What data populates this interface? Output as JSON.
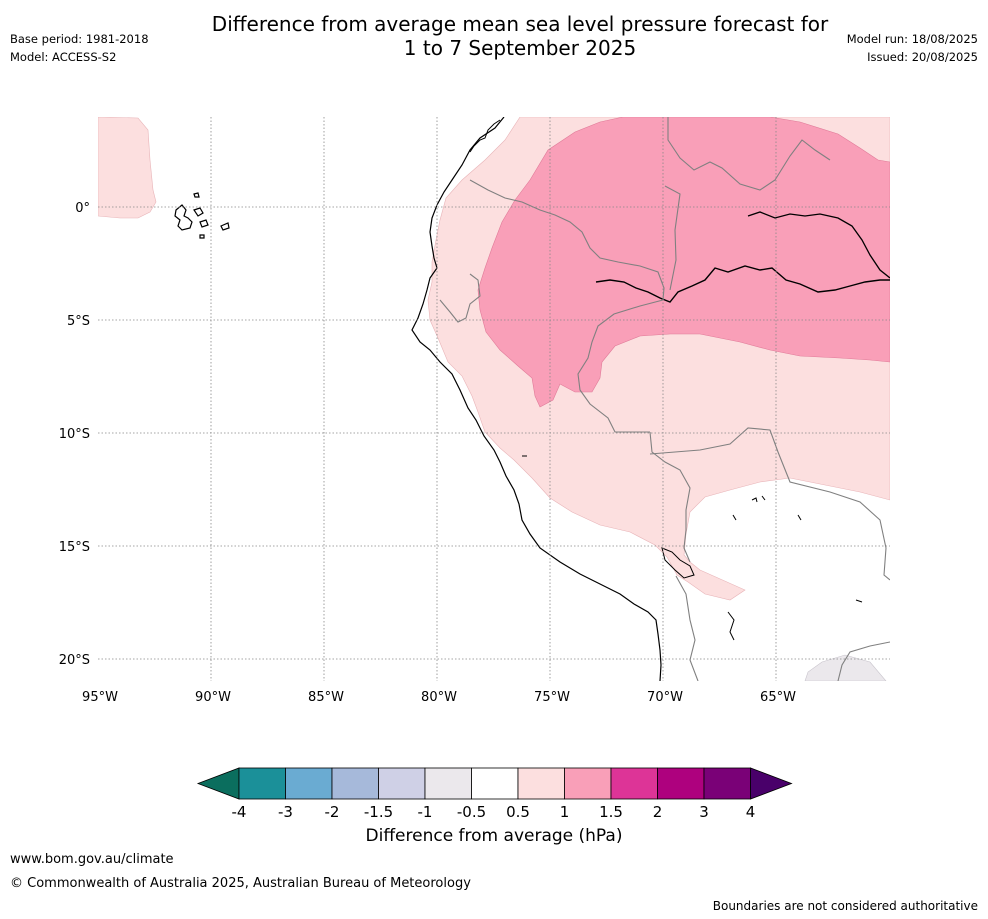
{
  "header": {
    "title_line1": "Difference from average mean sea level pressure forecast for",
    "title_line2": "1 to 7 September 2025",
    "base_period": "Base period: 1981-2018",
    "model": "Model: ACCESS-S2",
    "model_run": "Model run: 18/08/2025",
    "issued": "Issued: 20/08/2025"
  },
  "map": {
    "lat_labels": [
      "0°",
      "5°S",
      "10°S",
      "15°S",
      "20°S"
    ],
    "lon_labels": [
      "95°W",
      "90°W",
      "85°W",
      "80°W",
      "75°W",
      "70°W",
      "65°W"
    ],
    "colors": {
      "light_pink": "#fcdfdf",
      "pink": "#f99fb8",
      "land_grey": "#ebe8ec",
      "coast": "#000000",
      "border": "#808080",
      "grid": "#888888"
    }
  },
  "colorbar": {
    "title": "Difference from average (hPa)",
    "tick_labels": [
      "-4",
      "-3",
      "-2",
      "-1.5",
      "-1",
      "-0.5",
      "0.5",
      "1",
      "1.5",
      "2",
      "3",
      "4"
    ],
    "colors": [
      "#0b6e5e",
      "#1b9099",
      "#6aabd2",
      "#a6b9da",
      "#cfd0e6",
      "#ebe8ec",
      "#ffffff",
      "#fcdfdf",
      "#f99fb8",
      "#dd3497",
      "#ae017e",
      "#7a0177",
      "#49006a"
    ]
  },
  "footer": {
    "url": "www.bom.gov.au/climate",
    "copyright": "© Commonwealth of Australia 2025, Australian Bureau of Meteorology",
    "note": "Boundaries are not considered authoritative"
  }
}
